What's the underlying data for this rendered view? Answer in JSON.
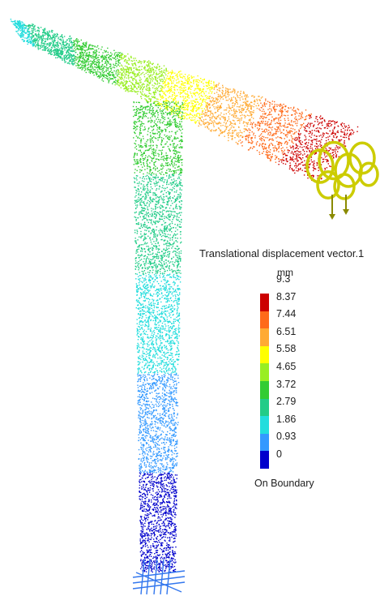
{
  "legend": {
    "title": "Translational displacement vector.1",
    "units": "mm",
    "labels": [
      "9.3",
      "8.37",
      "7.44",
      "6.51",
      "5.58",
      "4.65",
      "3.72",
      "2.79",
      "1.86",
      "0.93",
      "0"
    ],
    "footer": "On Boundary",
    "colors": [
      "#cc0000",
      "#ff6a1a",
      "#ffaa33",
      "#ffff00",
      "#99ee22",
      "#33cc33",
      "#22cc88",
      "#22dddd",
      "#3399ff",
      "#0000cc"
    ]
  },
  "result": {
    "max_value": 9.3,
    "min_value": 0,
    "units": "mm"
  },
  "colors": {
    "boundary_fixed": "#3377ee",
    "load_symbol": "#cccc00",
    "load_symbol_dark": "#8a8a00"
  }
}
